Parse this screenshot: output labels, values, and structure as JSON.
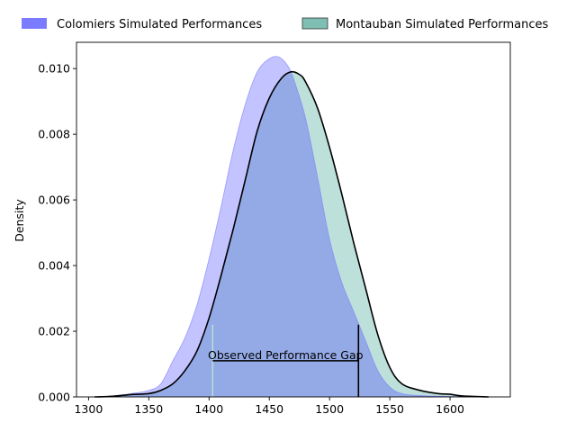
{
  "chart_data": {
    "type": "area",
    "xlabel": "",
    "ylabel": "Density",
    "xlim": [
      1290,
      1650
    ],
    "ylim": [
      0,
      0.0108
    ],
    "x_ticks": [
      1300,
      1350,
      1400,
      1450,
      1500,
      1550,
      1600
    ],
    "y_ticks": [
      0.0,
      0.002,
      0.004,
      0.006,
      0.008,
      0.01
    ],
    "y_tick_labels": [
      "0.000",
      "0.002",
      "0.004",
      "0.006",
      "0.008",
      "0.010"
    ],
    "legend_position": "top",
    "series": [
      {
        "name": "Colomiers Simulated Performances",
        "color": "#7b7bff",
        "fill_color": "#c3c3ff",
        "x": [
          1305,
          1320,
          1335,
          1350,
          1360,
          1370,
          1380,
          1390,
          1400,
          1410,
          1420,
          1430,
          1440,
          1450,
          1458,
          1465,
          1470,
          1480,
          1490,
          1500,
          1510,
          1520,
          1530,
          1540,
          1550,
          1560,
          1575,
          1590,
          1605,
          1625
        ],
        "y": [
          0.0,
          3e-05,
          0.0001,
          0.0002,
          0.0004,
          0.0011,
          0.0018,
          0.0028,
          0.0042,
          0.0058,
          0.0075,
          0.0089,
          0.0099,
          0.0103,
          0.01035,
          0.0101,
          0.0097,
          0.0085,
          0.0067,
          0.0048,
          0.0035,
          0.0026,
          0.0017,
          0.0008,
          0.0003,
          0.0001,
          4e-05,
          2e-05,
          1e-05,
          0.0
        ]
      },
      {
        "name": "Montauban Simulated Performances",
        "color": "#000000",
        "fill_color": "#bde0da",
        "legend_color": "#7fbfb3",
        "x": [
          1305,
          1320,
          1335,
          1350,
          1360,
          1370,
          1380,
          1390,
          1400,
          1410,
          1420,
          1430,
          1440,
          1450,
          1460,
          1468,
          1475,
          1480,
          1490,
          1500,
          1510,
          1520,
          1530,
          1540,
          1550,
          1560,
          1575,
          1590,
          1600,
          1610,
          1632
        ],
        "y": [
          0.0,
          2e-05,
          7e-05,
          0.0001,
          0.0002,
          0.0004,
          0.0008,
          0.0014,
          0.0024,
          0.0037,
          0.0051,
          0.0066,
          0.0081,
          0.0091,
          0.0097,
          0.0099,
          0.00982,
          0.0096,
          0.0088,
          0.0076,
          0.0062,
          0.0047,
          0.0033,
          0.0019,
          0.0009,
          0.0004,
          0.0002,
          0.0001,
          8e-05,
          3e-05,
          0.0
        ]
      }
    ],
    "overlap_color": "#94aae6",
    "annotation": {
      "text": "Observed Performance Gap",
      "x_start": 1403,
      "x_end": 1524,
      "y_level": 0.0011,
      "marker_start_top": 0.0022,
      "marker_end_top": 0.0022
    }
  }
}
